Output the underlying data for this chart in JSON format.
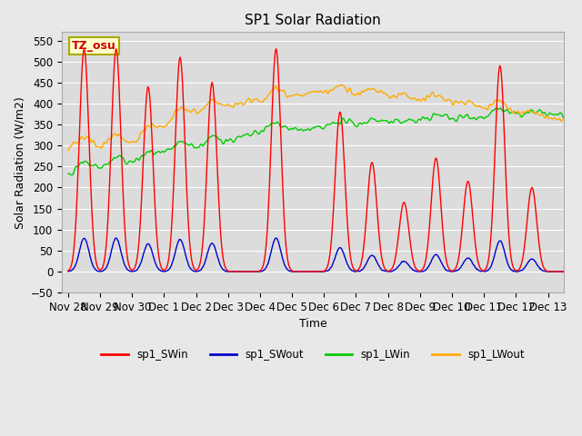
{
  "title": "SP1 Solar Radiation",
  "xlabel": "Time",
  "ylabel": "Solar Radiation (W/m2)",
  "ylim": [
    -50,
    570
  ],
  "background_color": "#e8e8e8",
  "plot_bg_color": "#dcdcdc",
  "grid_color": "white",
  "annotation_text": "TZ_osu",
  "annotation_bg": "#ffffcc",
  "annotation_border": "#aaaa00",
  "series_colors": {
    "sp1_SWin": "#ff0000",
    "sp1_SWout": "#0000cc",
    "sp1_LWin": "#00cc00",
    "sp1_LWout": "#ffaa00"
  },
  "legend_labels": [
    "sp1_SWin",
    "sp1_SWout",
    "sp1_LWin",
    "sp1_LWout"
  ],
  "xtick_labels": [
    "Nov 28",
    "Nov 29",
    "Nov 30",
    "Dec 1",
    "Dec 2",
    "Dec 3",
    "Dec 4",
    "Dec 5",
    "Dec 6",
    "Dec 7",
    "Dec 8",
    "Dec 9",
    "Dec 10",
    "Dec 11",
    "Dec 12",
    "Dec 13"
  ],
  "xtick_positions": [
    0,
    1,
    2,
    3,
    4,
    5,
    6,
    7,
    8,
    9,
    10,
    11,
    12,
    13,
    14,
    15
  ],
  "sw_peaks": [
    0.5,
    1.5,
    2.5,
    3.5,
    4.5,
    6.5,
    8.5,
    9.5,
    10.5,
    11.5,
    12.5,
    13.5,
    14.5
  ],
  "sw_peak_heights": [
    530,
    530,
    440,
    510,
    450,
    530,
    380,
    260,
    165,
    270,
    215,
    490,
    200
  ],
  "ytick_vals": [
    -50,
    0,
    50,
    100,
    150,
    200,
    250,
    300,
    350,
    400,
    450,
    500,
    550
  ]
}
